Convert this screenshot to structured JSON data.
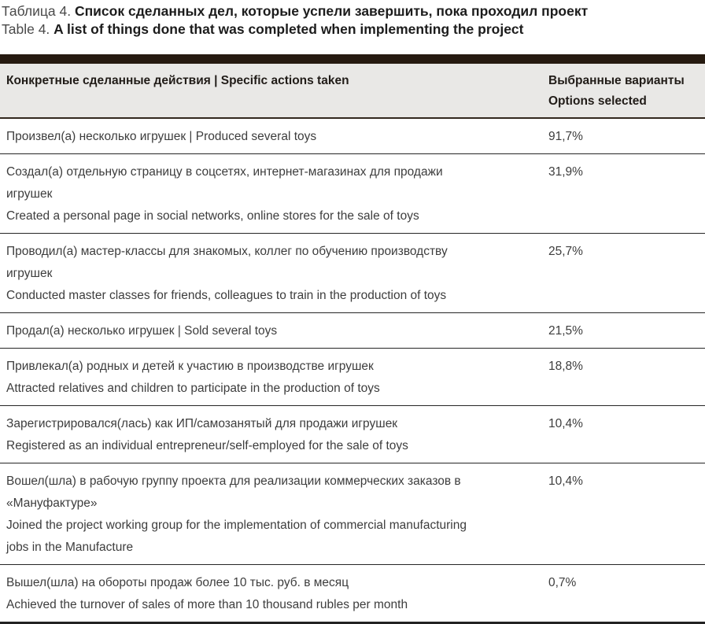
{
  "caption": {
    "ru_prefix": "Таблица 4.",
    "ru_title": "Список сделанных дел, которые успели завершить, пока проходил проект",
    "en_prefix": "Table 4.",
    "en_title": "A list of things done that was completed when implementing the project"
  },
  "table": {
    "header": {
      "actions": "Конкретные сделанные действия | Specific actions taken",
      "options_ru": "Выбранные варианты",
      "options_en": "Options selected"
    },
    "rows": [
      {
        "lines": [
          "Произвел(а) несколько игрушек | Produced several toys"
        ],
        "value": "91,7%"
      },
      {
        "lines": [
          "Создал(а) отдельную страницу в соцсетях, интернет-магазинах для продажи игрушек",
          "Created a personal page in social networks, online stores for the sale of toys"
        ],
        "value": "31,9%"
      },
      {
        "lines": [
          "Проводил(а) мастер-классы для знакомых, коллег по обучению производству игрушек",
          "Conducted master classes for friends, colleagues to train in the production of toys"
        ],
        "value": "25,7%"
      },
      {
        "lines": [
          "Продал(а) несколько игрушек | Sold several toys"
        ],
        "value": "21,5%"
      },
      {
        "lines": [
          "Привлекал(а) родных и детей к участию в производстве игрушек",
          "Attracted relatives and children to participate in the production of toys"
        ],
        "value": "18,8%"
      },
      {
        "lines": [
          "Зарегистрировался(лась) как ИП/самозанятый для продажи игрушек",
          "Registered as an individual entrepreneur/self-employed for the sale of toys"
        ],
        "value": "10,4%"
      },
      {
        "lines": [
          "Вошел(шла) в рабочую группу проекта для реализации коммерческих заказов в «Мануфактуре»",
          "Joined the project working group for the implementation of commercial manufacturing jobs in the Manufacture"
        ],
        "value": "10,4%"
      },
      {
        "lines": [
          "Вышел(шла) на обороты продаж более 10 тыс. руб. в месяц",
          "Achieved the turnover of sales of more than 10 thousand rubles per month"
        ],
        "value": "0,7%"
      }
    ]
  },
  "colors": {
    "accent_bar": "#261a10",
    "header_bg": "#e9e8e6",
    "rule": "#262626",
    "text": "#3d3d3d"
  }
}
